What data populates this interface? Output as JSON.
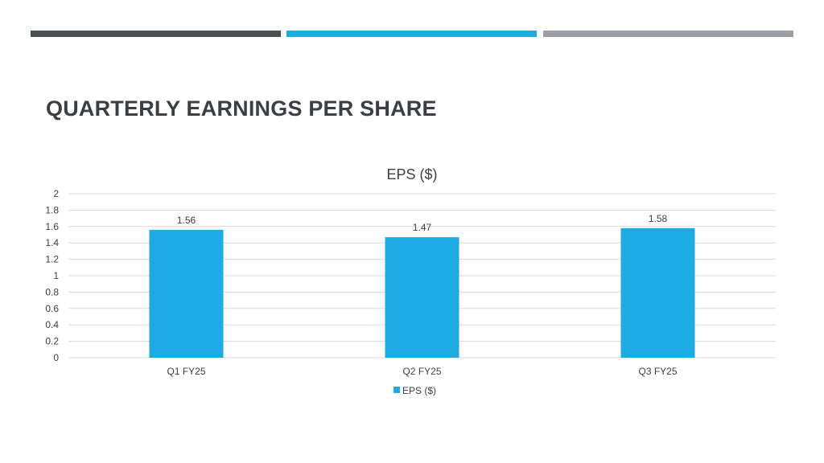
{
  "slide": {
    "title": "QUARTERLY EARNINGS PER SHARE",
    "accent_colors": [
      "#4a4f54",
      "#1eaae2",
      "#9aa0a6"
    ],
    "title_color": "#3b3f44"
  },
  "chart_data": {
    "type": "bar",
    "title": "EPS ($)",
    "categories": [
      "Q1 FY25",
      "Q2 FY25",
      "Q3 FY25"
    ],
    "series": [
      {
        "name": "EPS ($)",
        "values": [
          1.56,
          1.47,
          1.58
        ],
        "color": "#1eaae2"
      }
    ],
    "data_labels": [
      "1.56",
      "1.47",
      "1.58"
    ],
    "ylim": [
      0,
      2
    ],
    "yticks": [
      "0",
      "0.2",
      "0.4",
      "0.6",
      "0.8",
      "1",
      "1.2",
      "1.4",
      "1.6",
      "1.8",
      "2"
    ],
    "grid": true,
    "legend": "bottom",
    "xlabel": "",
    "ylabel": ""
  }
}
